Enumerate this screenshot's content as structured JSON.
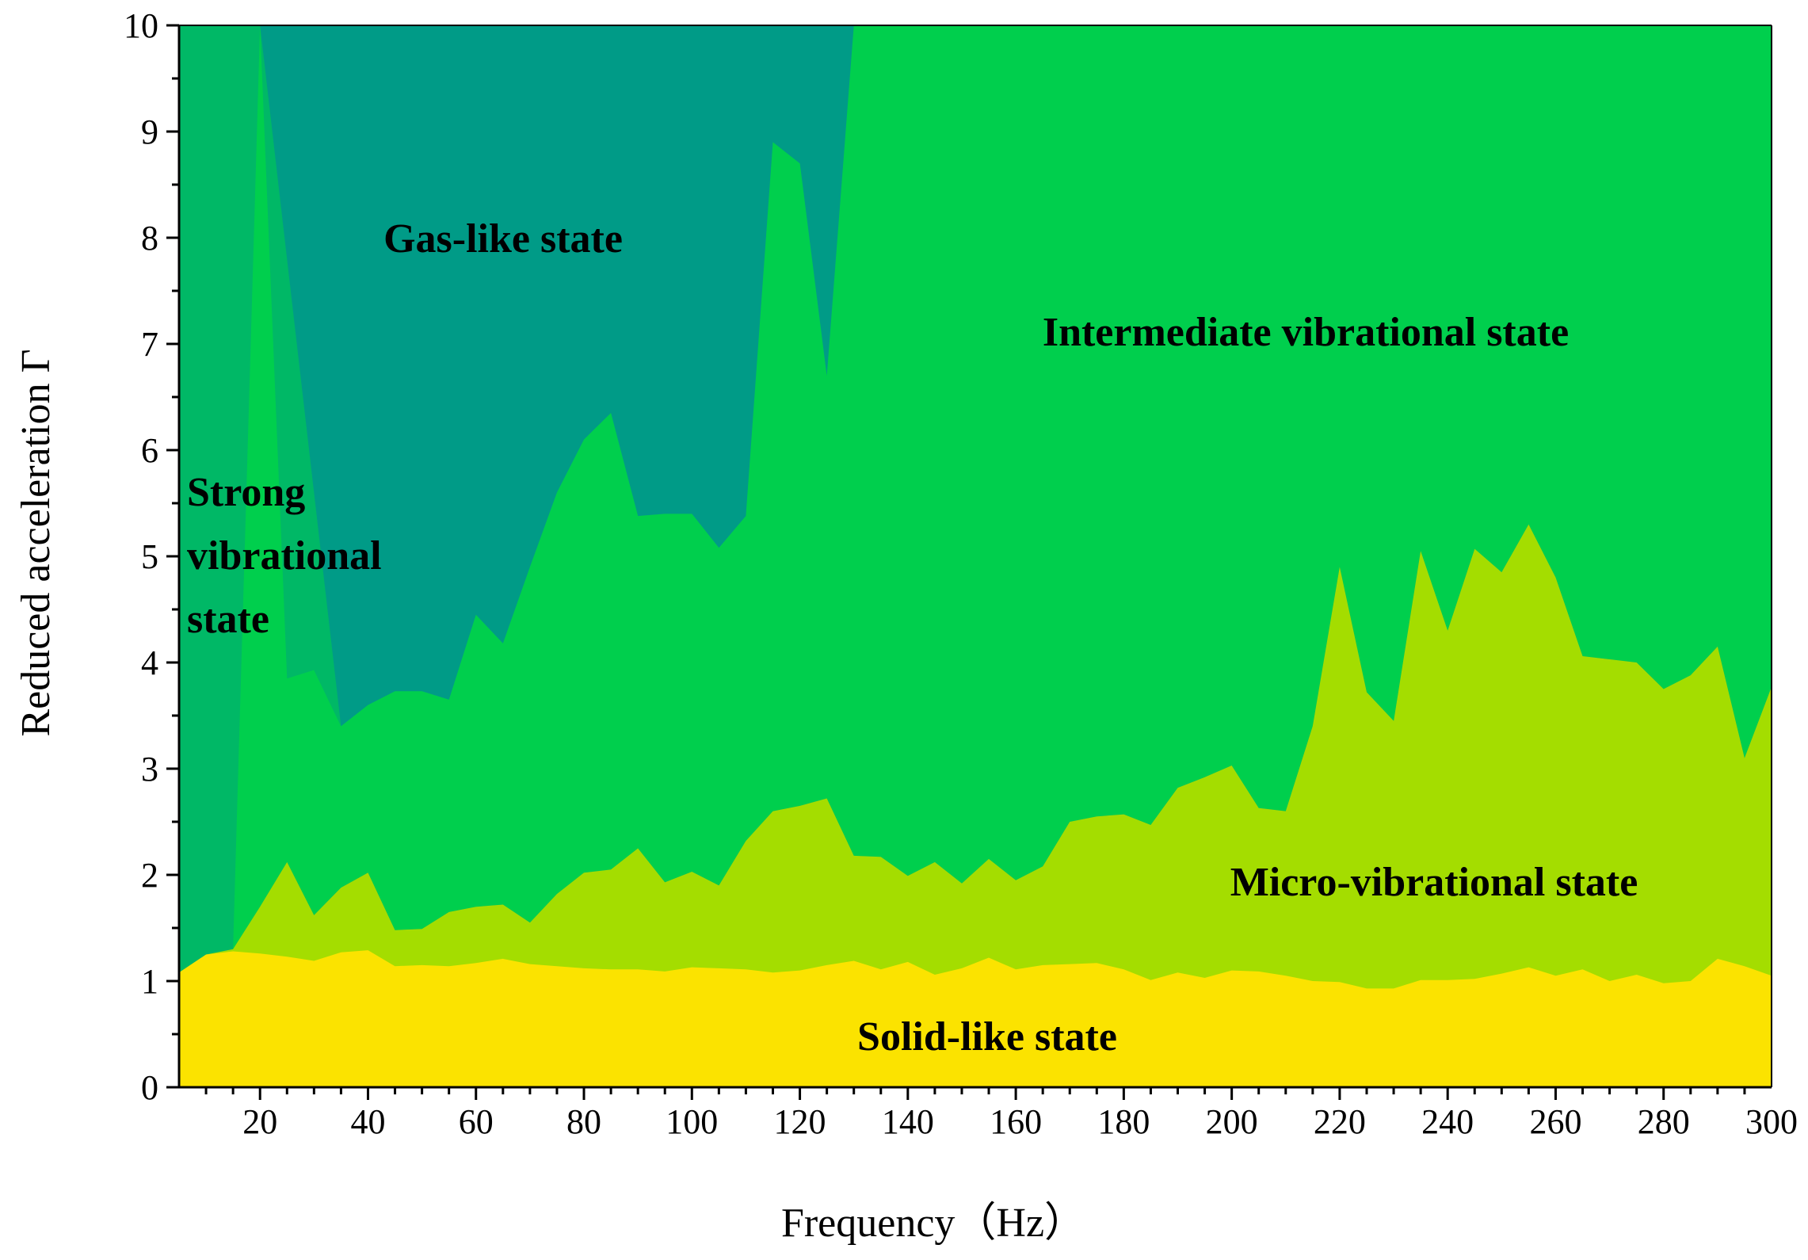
{
  "chart_data": {
    "type": "area",
    "title": "",
    "xlabel": "Frequency（Hz）",
    "ylabel": "Reduced acceleration Γ",
    "xlim": [
      5,
      300
    ],
    "ylim": [
      0,
      10
    ],
    "x_ticks": [
      20,
      40,
      60,
      80,
      100,
      120,
      140,
      160,
      180,
      200,
      220,
      240,
      260,
      280,
      300
    ],
    "y_ticks": [
      0,
      1,
      2,
      3,
      4,
      5,
      6,
      7,
      8,
      9,
      10
    ],
    "x_minor_step": 5,
    "y_minor_step": 0.5,
    "colors": {
      "solid": "#fbe300",
      "micro": "#a4dd00",
      "intermediate": "#00cf4d",
      "strong": "#00b866",
      "gas": "#009b87"
    },
    "boundaries": {
      "solid_micro": [
        [
          5,
          1.08
        ],
        [
          10,
          1.25
        ],
        [
          15,
          1.28
        ],
        [
          20,
          1.26
        ],
        [
          25,
          1.23
        ],
        [
          30,
          1.19
        ],
        [
          35,
          1.27
        ],
        [
          40,
          1.29
        ],
        [
          45,
          1.14
        ],
        [
          50,
          1.15
        ],
        [
          55,
          1.14
        ],
        [
          60,
          1.17
        ],
        [
          65,
          1.21
        ],
        [
          70,
          1.16
        ],
        [
          75,
          1.14
        ],
        [
          80,
          1.12
        ],
        [
          85,
          1.11
        ],
        [
          90,
          1.11
        ],
        [
          95,
          1.09
        ],
        [
          100,
          1.13
        ],
        [
          105,
          1.12
        ],
        [
          110,
          1.11
        ],
        [
          115,
          1.08
        ],
        [
          120,
          1.1
        ],
        [
          125,
          1.15
        ],
        [
          130,
          1.19
        ],
        [
          135,
          1.11
        ],
        [
          140,
          1.18
        ],
        [
          145,
          1.06
        ],
        [
          150,
          1.12
        ],
        [
          155,
          1.22
        ],
        [
          160,
          1.11
        ],
        [
          165,
          1.15
        ],
        [
          170,
          1.16
        ],
        [
          175,
          1.17
        ],
        [
          180,
          1.11
        ],
        [
          185,
          1.01
        ],
        [
          190,
          1.08
        ],
        [
          195,
          1.03
        ],
        [
          200,
          1.1
        ],
        [
          205,
          1.09
        ],
        [
          210,
          1.05
        ],
        [
          215,
          1.0
        ],
        [
          220,
          0.99
        ],
        [
          225,
          0.93
        ],
        [
          230,
          0.93
        ],
        [
          235,
          1.01
        ],
        [
          240,
          1.01
        ],
        [
          245,
          1.02
        ],
        [
          250,
          1.07
        ],
        [
          255,
          1.13
        ],
        [
          260,
          1.05
        ],
        [
          265,
          1.11
        ],
        [
          270,
          1.0
        ],
        [
          275,
          1.06
        ],
        [
          280,
          0.98
        ],
        [
          285,
          1.0
        ],
        [
          290,
          1.21
        ],
        [
          295,
          1.14
        ],
        [
          300,
          1.05
        ]
      ],
      "micro_upper": [
        [
          5,
          1.08
        ],
        [
          10,
          1.25
        ],
        [
          15,
          1.3
        ],
        [
          20,
          1.7
        ],
        [
          25,
          2.12
        ],
        [
          30,
          1.62
        ],
        [
          35,
          1.88
        ],
        [
          40,
          2.02
        ],
        [
          45,
          1.48
        ],
        [
          50,
          1.49
        ],
        [
          55,
          1.65
        ],
        [
          60,
          1.7
        ],
        [
          65,
          1.72
        ],
        [
          70,
          1.55
        ],
        [
          75,
          1.82
        ],
        [
          80,
          2.02
        ],
        [
          85,
          2.05
        ],
        [
          90,
          2.25
        ],
        [
          95,
          1.93
        ],
        [
          100,
          2.03
        ],
        [
          105,
          1.9
        ],
        [
          110,
          2.32
        ],
        [
          115,
          2.6
        ],
        [
          120,
          2.65
        ],
        [
          125,
          2.72
        ],
        [
          130,
          2.18
        ],
        [
          135,
          2.17
        ],
        [
          140,
          1.99
        ],
        [
          145,
          2.12
        ],
        [
          150,
          1.92
        ],
        [
          155,
          2.15
        ],
        [
          160,
          1.95
        ],
        [
          165,
          2.08
        ],
        [
          170,
          2.5
        ],
        [
          175,
          2.55
        ],
        [
          180,
          2.57
        ],
        [
          185,
          2.47
        ],
        [
          190,
          2.82
        ],
        [
          195,
          2.92
        ],
        [
          200,
          3.03
        ],
        [
          205,
          2.63
        ],
        [
          210,
          2.6
        ],
        [
          215,
          3.4
        ],
        [
          220,
          4.9
        ],
        [
          225,
          3.72
        ],
        [
          230,
          3.45
        ],
        [
          235,
          5.05
        ],
        [
          240,
          4.3
        ],
        [
          245,
          5.07
        ],
        [
          250,
          4.85
        ],
        [
          255,
          5.3
        ],
        [
          260,
          4.8
        ],
        [
          265,
          4.06
        ],
        [
          270,
          4.03
        ],
        [
          275,
          4.0
        ],
        [
          280,
          3.75
        ],
        [
          285,
          3.88
        ],
        [
          290,
          4.15
        ],
        [
          295,
          3.1
        ],
        [
          300,
          3.77
        ]
      ],
      "strong_right": [
        [
          5,
          1.08
        ],
        [
          10,
          1.25
        ],
        [
          15,
          1.3
        ],
        [
          20,
          1.7
        ],
        [
          25,
          3.85
        ],
        [
          30,
          3.93
        ],
        [
          35,
          3.4
        ]
      ],
      "intermediate_upper": [
        [
          15,
          1.3
        ],
        [
          20,
          10
        ],
        [
          25,
          3.85
        ],
        [
          30,
          3.93
        ],
        [
          35,
          3.4
        ],
        [
          40,
          3.6
        ],
        [
          45,
          3.73
        ],
        [
          50,
          3.73
        ],
        [
          55,
          3.65
        ],
        [
          60,
          4.45
        ],
        [
          65,
          4.18
        ],
        [
          70,
          4.9
        ],
        [
          75,
          5.6
        ],
        [
          80,
          6.1
        ],
        [
          85,
          6.35
        ],
        [
          90,
          5.38
        ],
        [
          95,
          5.4
        ],
        [
          100,
          5.4
        ],
        [
          105,
          5.08
        ],
        [
          110,
          5.38
        ],
        [
          115,
          8.9
        ],
        [
          120,
          8.7
        ],
        [
          125,
          6.7
        ],
        [
          130,
          10
        ],
        [
          300,
          10
        ]
      ]
    },
    "region_labels": {
      "gas": "Gas-like state",
      "intermediate": "Intermediate vibrational state",
      "strong_lines": [
        "Strong",
        "vibrational",
        "state"
      ],
      "micro": "Micro-vibrational state",
      "solid": "Solid-like state"
    }
  }
}
